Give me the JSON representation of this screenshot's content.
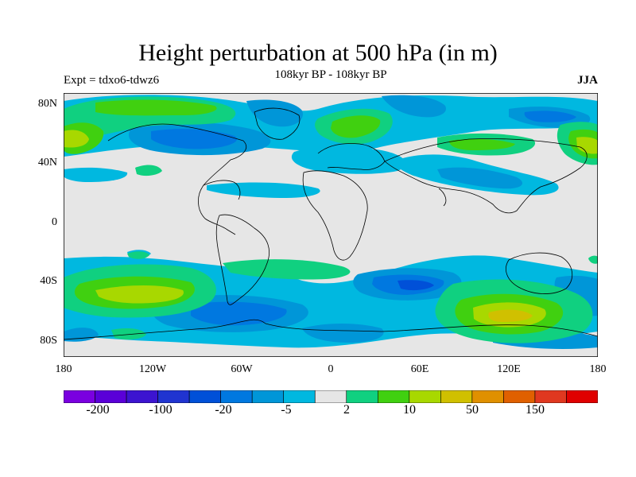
{
  "title": "Height perturbation at 500 hPa (in m)",
  "experiment": "Expt = tdxo6-tdwz6",
  "subtitle": "108kyr BP - 108kyr BP",
  "season": "JJA",
  "lat_labels": [
    "80N",
    "40N",
    "0",
    "40S",
    "80S"
  ],
  "lon_labels": [
    "180",
    "120W",
    "60W",
    "0",
    "60E",
    "120E",
    "180"
  ],
  "colorbar": {
    "colors": [
      "#7a00e0",
      "#5a00d8",
      "#3c14d0",
      "#2034d0",
      "#0050d8",
      "#0078e0",
      "#0096d8",
      "#00b8e0",
      "#e6e6e6",
      "#10d080",
      "#40d010",
      "#a8d800",
      "#d0c000",
      "#e09000",
      "#e06000",
      "#e03820",
      "#e00000"
    ],
    "labels": [
      "-200",
      "-100",
      "-20",
      "-5",
      "2",
      "10",
      "50",
      "150"
    ]
  },
  "map": {
    "background": "#e6e6e6",
    "lon_range": [
      -180,
      180
    ],
    "lat_range": [
      -90,
      90
    ]
  }
}
